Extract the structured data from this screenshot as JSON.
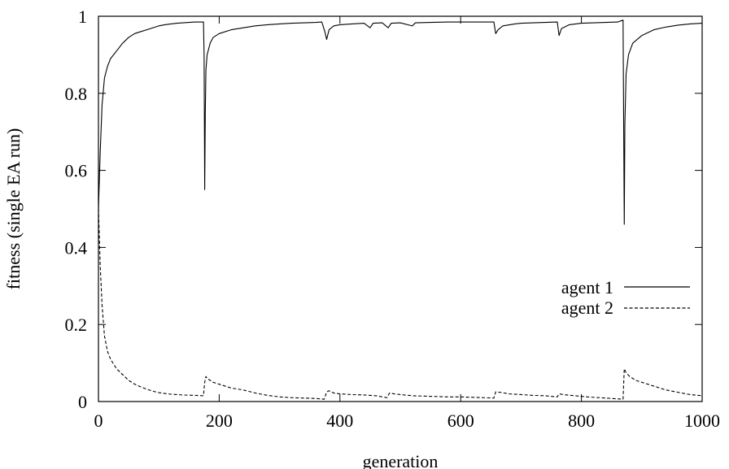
{
  "chart_data": {
    "type": "line",
    "title": "",
    "xlabel": "generation",
    "ylabel": "fitness (single EA run)",
    "xlim": [
      0,
      1000
    ],
    "ylim": [
      0,
      1
    ],
    "xticks": [
      0,
      200,
      400,
      600,
      800,
      1000
    ],
    "yticks": [
      0,
      0.2,
      0.4,
      0.6,
      0.8,
      1
    ],
    "xtick_labels": [
      "0",
      "200",
      "400",
      "600",
      "800",
      "1000"
    ],
    "ytick_labels": [
      "0",
      "0.2",
      "0.4",
      "0.6",
      "0.8",
      "1"
    ],
    "grid": false,
    "legend_position": "right",
    "series": [
      {
        "name": "agent 1",
        "style": "solid",
        "color": "#000000",
        "points": [
          [
            0,
            0.5
          ],
          [
            3,
            0.65
          ],
          [
            6,
            0.77
          ],
          [
            10,
            0.84
          ],
          [
            15,
            0.87
          ],
          [
            20,
            0.89
          ],
          [
            30,
            0.91
          ],
          [
            40,
            0.93
          ],
          [
            50,
            0.945
          ],
          [
            60,
            0.955
          ],
          [
            70,
            0.96
          ],
          [
            80,
            0.965
          ],
          [
            90,
            0.97
          ],
          [
            100,
            0.975
          ],
          [
            110,
            0.978
          ],
          [
            120,
            0.98
          ],
          [
            130,
            0.982
          ],
          [
            140,
            0.983
          ],
          [
            150,
            0.984
          ],
          [
            160,
            0.985
          ],
          [
            170,
            0.985
          ],
          [
            174,
            0.985
          ],
          [
            175,
            0.9
          ],
          [
            176,
            0.55
          ],
          [
            177,
            0.75
          ],
          [
            178,
            0.86
          ],
          [
            180,
            0.9
          ],
          [
            185,
            0.93
          ],
          [
            190,
            0.945
          ],
          [
            200,
            0.955
          ],
          [
            220,
            0.965
          ],
          [
            240,
            0.97
          ],
          [
            260,
            0.975
          ],
          [
            280,
            0.978
          ],
          [
            300,
            0.98
          ],
          [
            320,
            0.982
          ],
          [
            340,
            0.983
          ],
          [
            360,
            0.984
          ],
          [
            370,
            0.985
          ],
          [
            375,
            0.96
          ],
          [
            378,
            0.94
          ],
          [
            382,
            0.965
          ],
          [
            390,
            0.975
          ],
          [
            400,
            0.978
          ],
          [
            420,
            0.98
          ],
          [
            440,
            0.982
          ],
          [
            450,
            0.97
          ],
          [
            455,
            0.982
          ],
          [
            470,
            0.983
          ],
          [
            480,
            0.97
          ],
          [
            485,
            0.982
          ],
          [
            500,
            0.983
          ],
          [
            520,
            0.975
          ],
          [
            525,
            0.983
          ],
          [
            550,
            0.984
          ],
          [
            580,
            0.985
          ],
          [
            600,
            0.985
          ],
          [
            620,
            0.985
          ],
          [
            640,
            0.985
          ],
          [
            655,
            0.985
          ],
          [
            658,
            0.955
          ],
          [
            662,
            0.965
          ],
          [
            670,
            0.975
          ],
          [
            690,
            0.98
          ],
          [
            700,
            0.982
          ],
          [
            720,
            0.983
          ],
          [
            740,
            0.984
          ],
          [
            760,
            0.985
          ],
          [
            763,
            0.95
          ],
          [
            767,
            0.968
          ],
          [
            780,
            0.978
          ],
          [
            800,
            0.982
          ],
          [
            820,
            0.983
          ],
          [
            840,
            0.984
          ],
          [
            860,
            0.985
          ],
          [
            869,
            0.99
          ],
          [
            870,
            0.72
          ],
          [
            871,
            0.46
          ],
          [
            872,
            0.72
          ],
          [
            874,
            0.85
          ],
          [
            878,
            0.9
          ],
          [
            885,
            0.93
          ],
          [
            900,
            0.95
          ],
          [
            920,
            0.965
          ],
          [
            940,
            0.972
          ],
          [
            960,
            0.977
          ],
          [
            980,
            0.98
          ],
          [
            1000,
            0.982
          ]
        ]
      },
      {
        "name": "agent 2",
        "style": "dashed",
        "color": "#000000",
        "points": [
          [
            0,
            0.5
          ],
          [
            3,
            0.35
          ],
          [
            6,
            0.25
          ],
          [
            10,
            0.17
          ],
          [
            15,
            0.13
          ],
          [
            20,
            0.11
          ],
          [
            30,
            0.085
          ],
          [
            40,
            0.07
          ],
          [
            50,
            0.055
          ],
          [
            60,
            0.045
          ],
          [
            70,
            0.038
          ],
          [
            80,
            0.032
          ],
          [
            90,
            0.027
          ],
          [
            100,
            0.023
          ],
          [
            120,
            0.019
          ],
          [
            140,
            0.017
          ],
          [
            160,
            0.016
          ],
          [
            174,
            0.015
          ],
          [
            176,
            0.05
          ],
          [
            178,
            0.065
          ],
          [
            180,
            0.06
          ],
          [
            190,
            0.05
          ],
          [
            200,
            0.045
          ],
          [
            220,
            0.035
          ],
          [
            240,
            0.03
          ],
          [
            260,
            0.022
          ],
          [
            280,
            0.016
          ],
          [
            300,
            0.012
          ],
          [
            320,
            0.01
          ],
          [
            340,
            0.009
          ],
          [
            360,
            0.008
          ],
          [
            374,
            0.006
          ],
          [
            378,
            0.025
          ],
          [
            382,
            0.028
          ],
          [
            390,
            0.022
          ],
          [
            400,
            0.02
          ],
          [
            420,
            0.018
          ],
          [
            440,
            0.017
          ],
          [
            460,
            0.015
          ],
          [
            478,
            0.01
          ],
          [
            482,
            0.022
          ],
          [
            490,
            0.02
          ],
          [
            500,
            0.018
          ],
          [
            520,
            0.015
          ],
          [
            540,
            0.014
          ],
          [
            560,
            0.013
          ],
          [
            580,
            0.012
          ],
          [
            600,
            0.012
          ],
          [
            620,
            0.011
          ],
          [
            640,
            0.01
          ],
          [
            655,
            0.009
          ],
          [
            658,
            0.025
          ],
          [
            665,
            0.024
          ],
          [
            680,
            0.02
          ],
          [
            700,
            0.018
          ],
          [
            720,
            0.016
          ],
          [
            740,
            0.015
          ],
          [
            760,
            0.012
          ],
          [
            763,
            0.02
          ],
          [
            770,
            0.018
          ],
          [
            790,
            0.015
          ],
          [
            810,
            0.012
          ],
          [
            830,
            0.01
          ],
          [
            850,
            0.008
          ],
          [
            869,
            0.006
          ],
          [
            871,
            0.085
          ],
          [
            874,
            0.075
          ],
          [
            880,
            0.065
          ],
          [
            890,
            0.055
          ],
          [
            900,
            0.05
          ],
          [
            920,
            0.04
          ],
          [
            940,
            0.03
          ],
          [
            960,
            0.024
          ],
          [
            980,
            0.018
          ],
          [
            1000,
            0.015
          ]
        ]
      }
    ]
  }
}
